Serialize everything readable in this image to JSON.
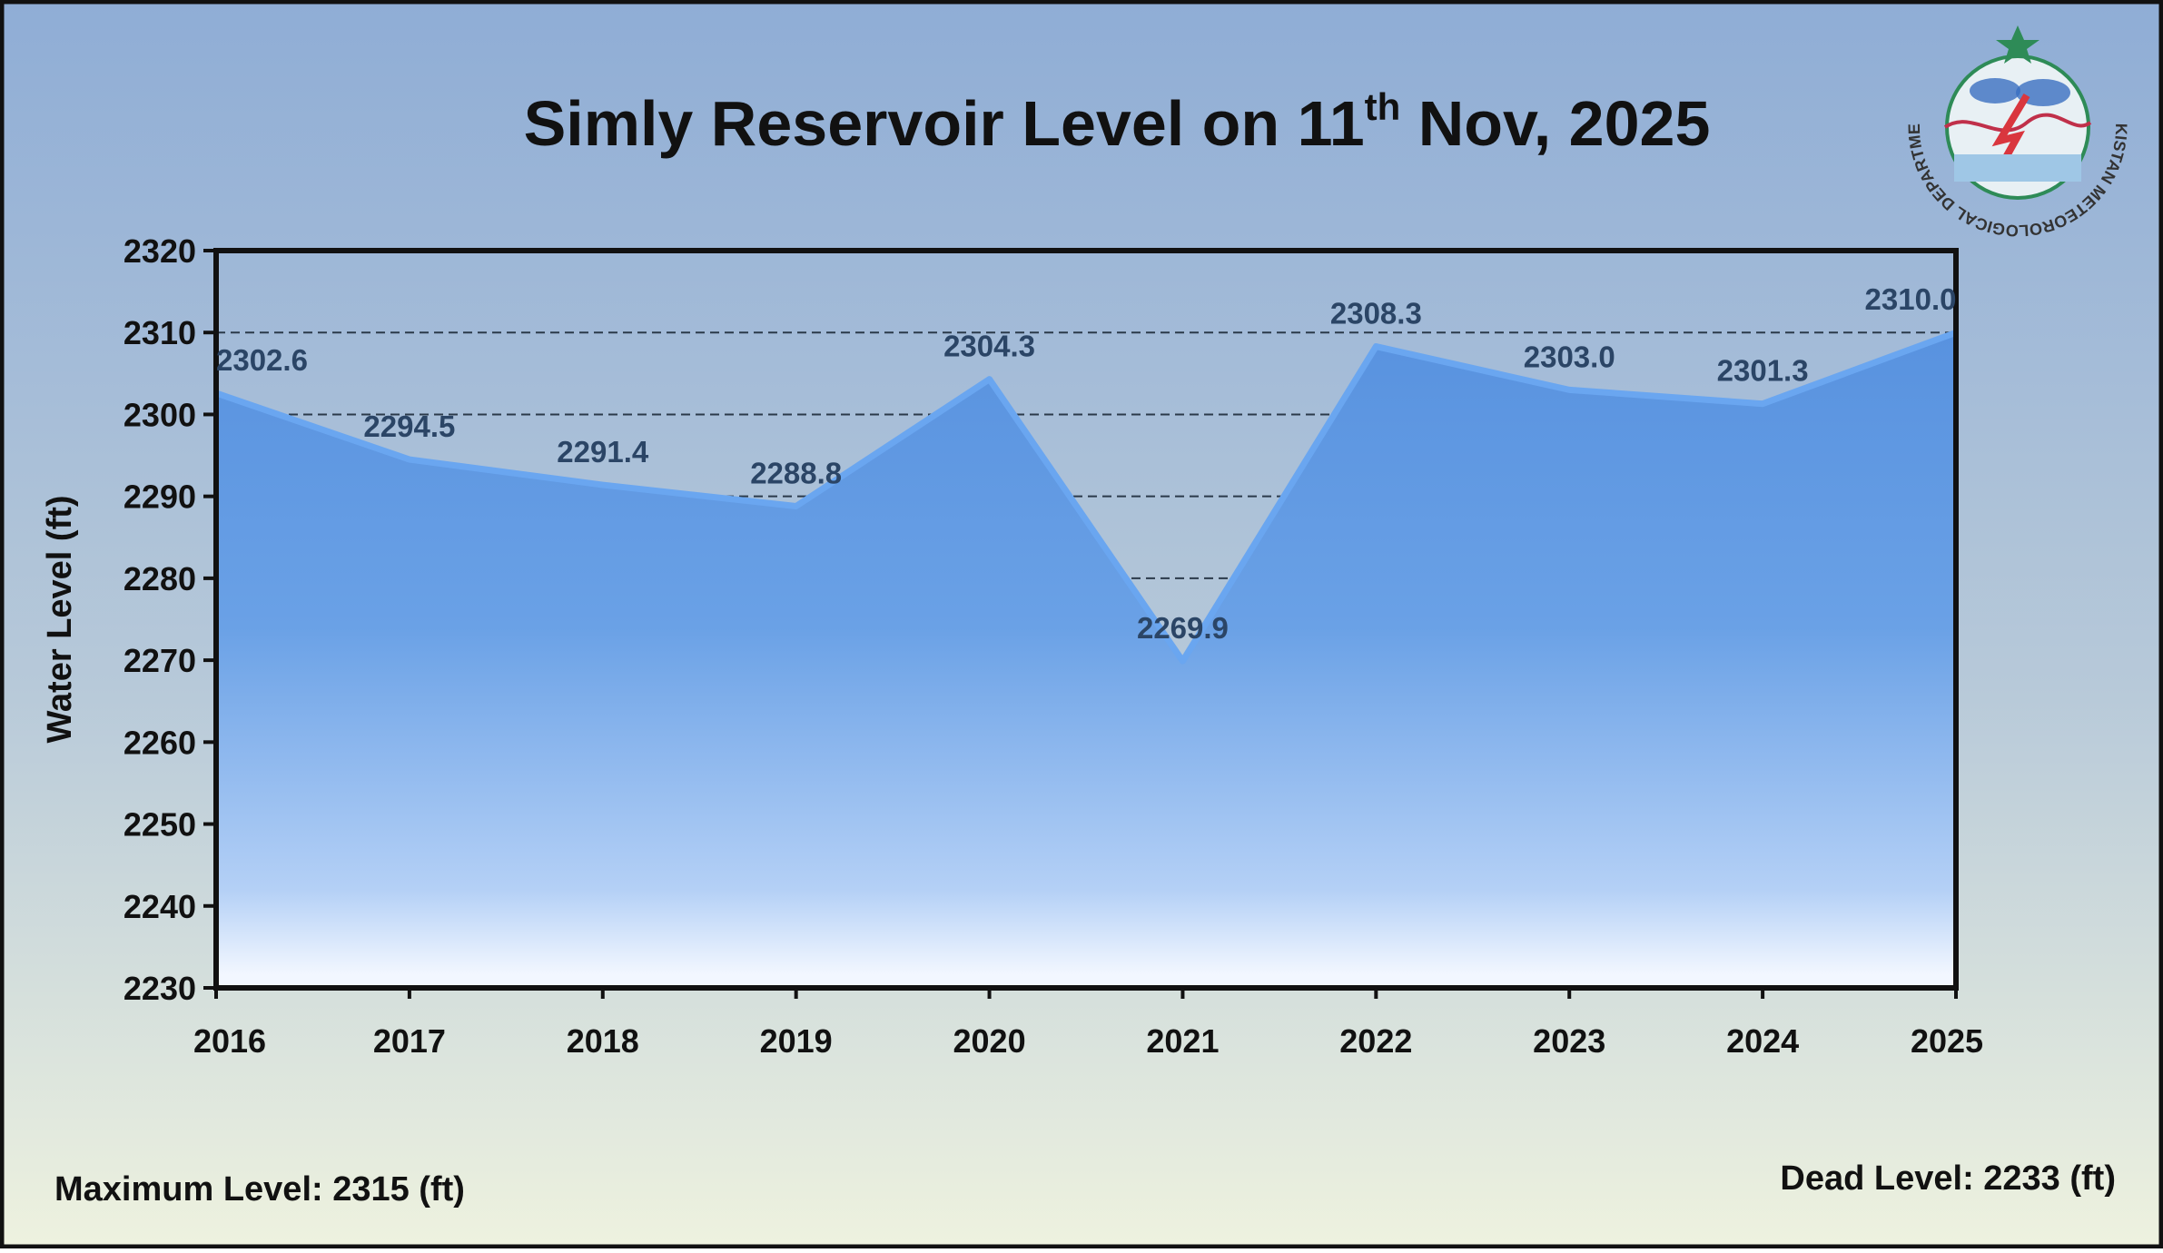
{
  "chart_data": {
    "type": "area",
    "title": {
      "main": "Simly Reservoir Level on 11",
      "sup": "th",
      "rest": " Nov, 2025"
    },
    "ylabel": "Water Level (ft)",
    "xlabel": "",
    "categories": [
      "2016",
      "2017",
      "2018",
      "2019",
      "2020",
      "2021",
      "2022",
      "2023",
      "2024",
      "2025"
    ],
    "values": [
      2302.6,
      2294.5,
      2291.4,
      2288.8,
      2304.3,
      2269.9,
      2308.3,
      2303.0,
      2301.3,
      2310.0
    ],
    "data_labels": [
      "2302.6",
      "2294.5",
      "2291.4",
      "2288.8",
      "2304.3",
      "2269.9",
      "2308.3",
      "2303.0",
      "2301.3",
      "2310.0"
    ],
    "ylim": [
      2230,
      2320
    ],
    "yticks": [
      "2230",
      "2240",
      "2250",
      "2260",
      "2270",
      "2280",
      "2290",
      "2300",
      "2310",
      "2320"
    ],
    "grid": "horizontal dashed",
    "legend": "none",
    "colors": {
      "fill": "#5f97de",
      "line": "#6aa6f0",
      "label": "#2b4566",
      "bg_top": "#90aed6",
      "bg_bottom": "#eef2df"
    }
  },
  "footer": {
    "max_level": "Maximum Level: 2315 (ft)",
    "dead_level": "Dead Level: 2233 (ft)"
  },
  "logo": {
    "text": "PAKISTAN METEOROLOGICAL DEPARTMENT"
  }
}
